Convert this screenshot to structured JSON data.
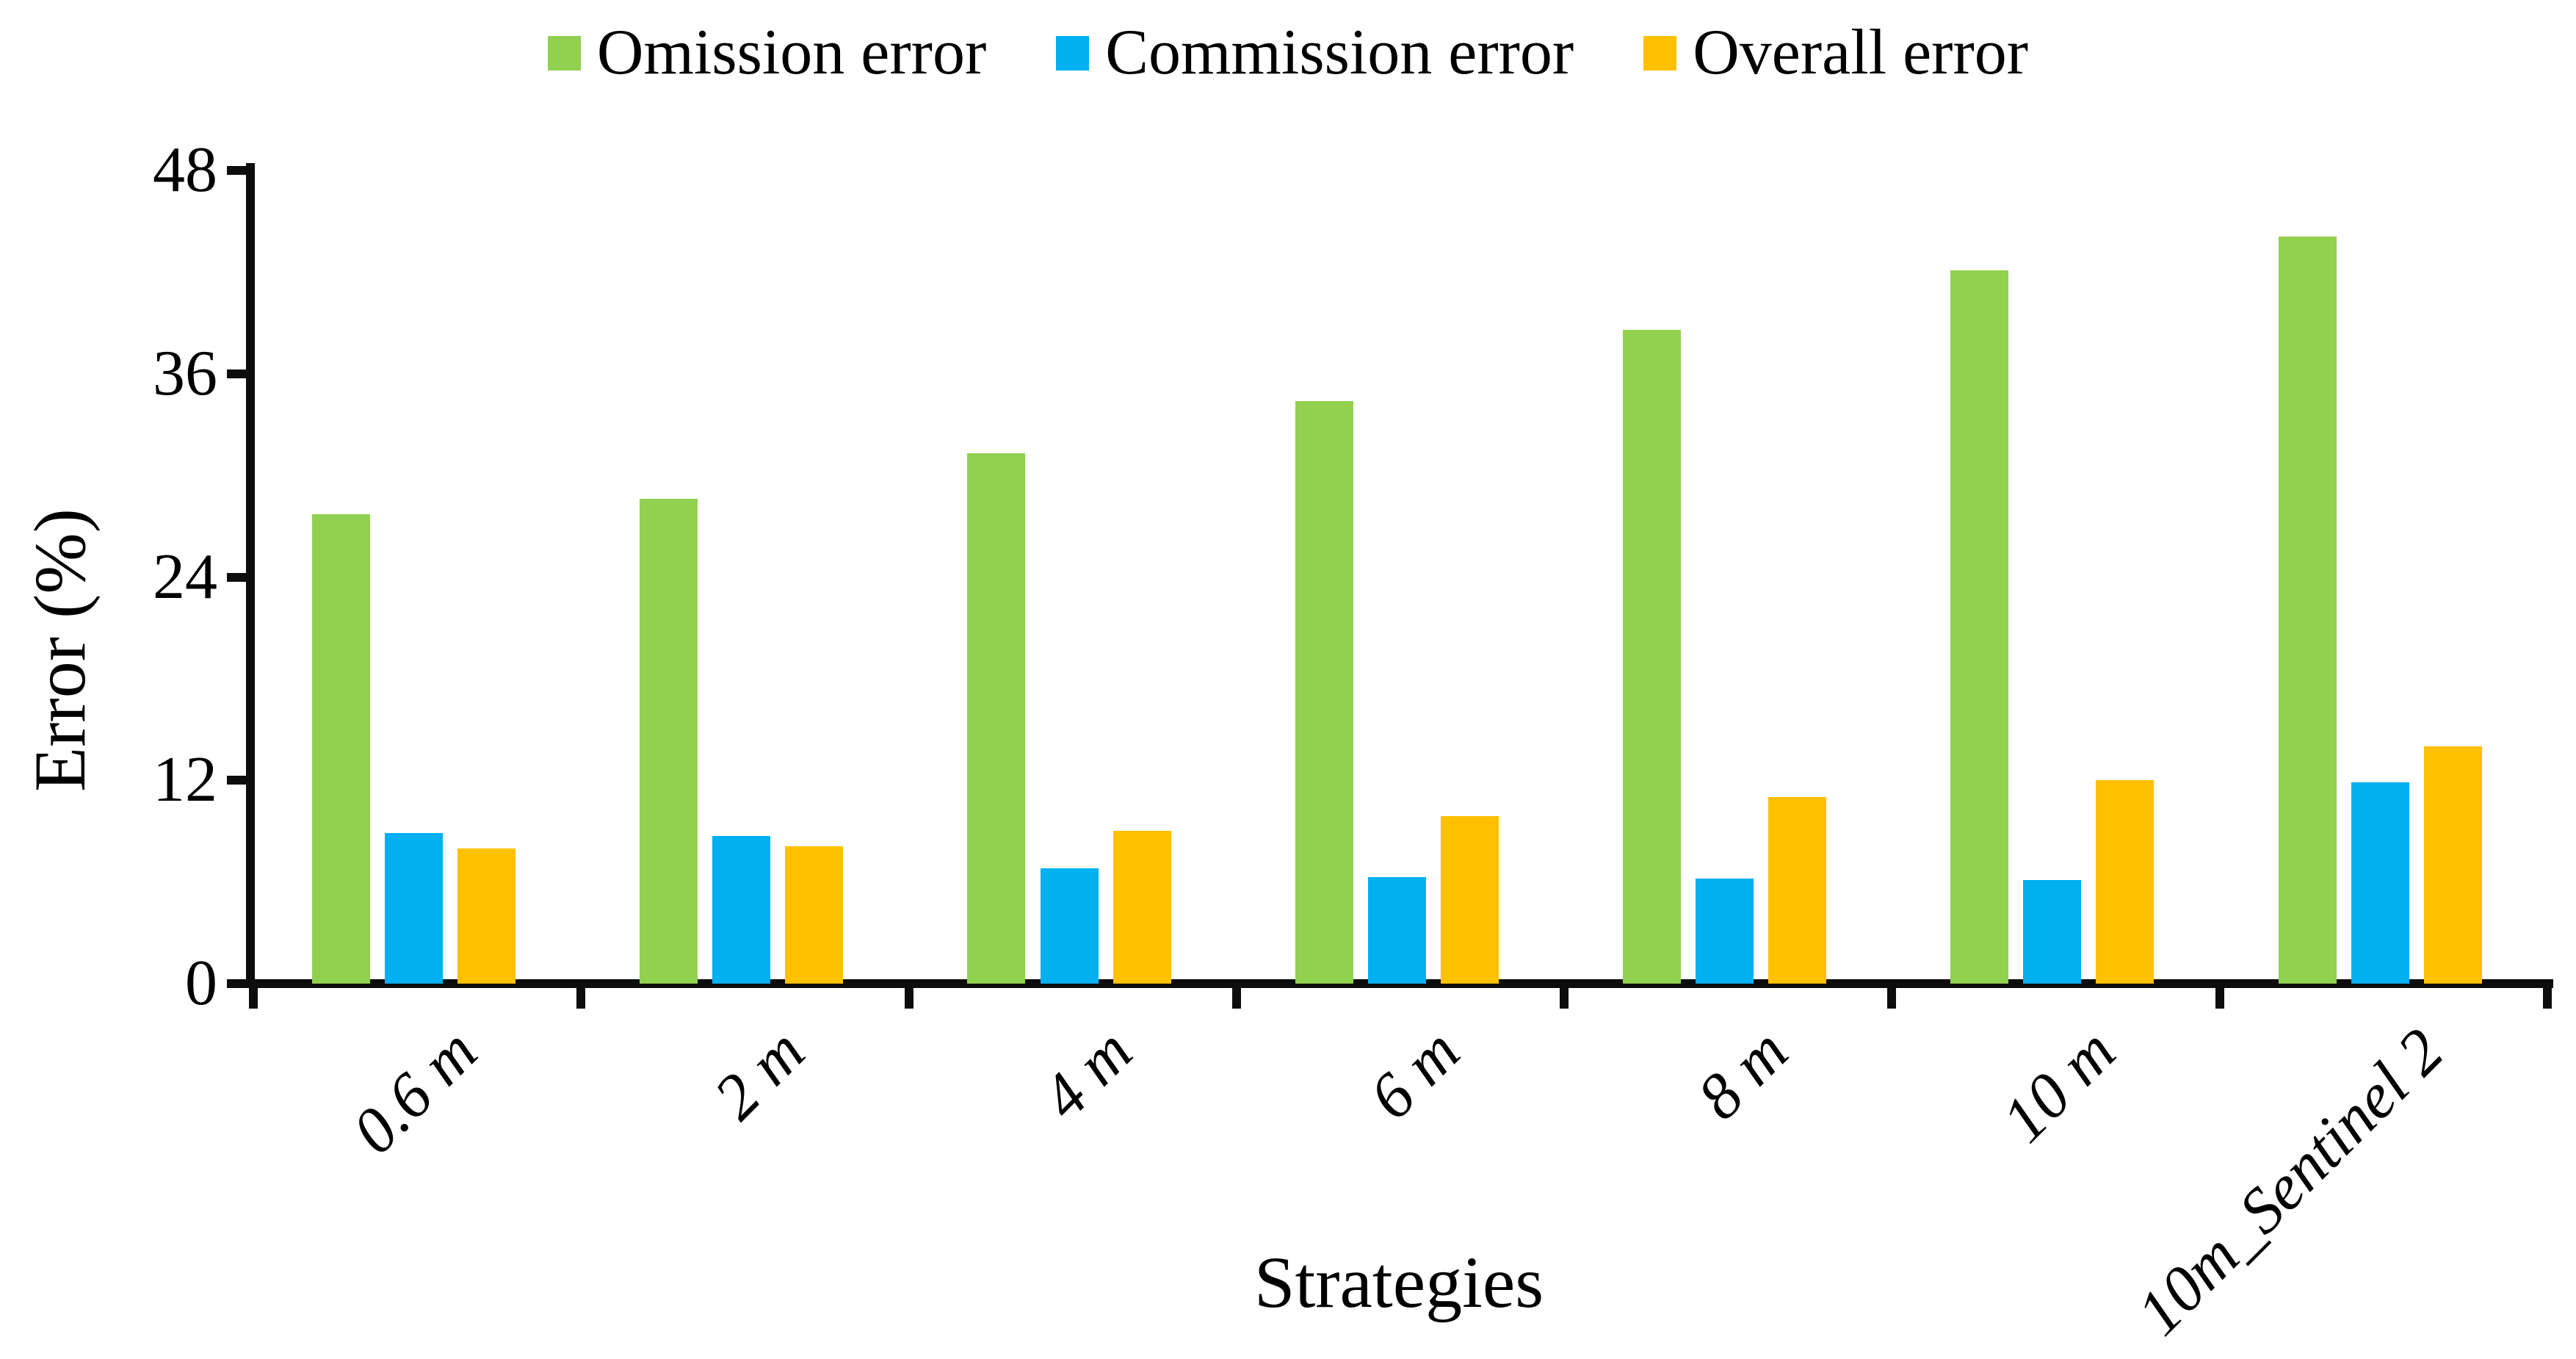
{
  "chart_data": {
    "type": "bar",
    "title": "",
    "xlabel": "Strategies",
    "ylabel": "Error (%)",
    "ylim": [
      0,
      48
    ],
    "yticks": [
      0,
      12,
      24,
      36,
      48
    ],
    "grid": "off",
    "legend_position": "top-center",
    "categories": [
      "0.6 m",
      "2 m",
      "4 m",
      "6 m",
      "8 m",
      "10 m",
      "10m_Sentinel 2"
    ],
    "series": [
      {
        "name": "Omission error",
        "color": "#92D050",
        "values": [
          27.7,
          28.6,
          31.3,
          34.4,
          38.6,
          42.1,
          44.1
        ]
      },
      {
        "name": "Commission error",
        "color": "#00B0F0",
        "values": [
          8.9,
          8.7,
          6.8,
          6.3,
          6.2,
          6.1,
          11.9
        ]
      },
      {
        "name": "Overall error",
        "color": "#FFC000",
        "values": [
          8.0,
          8.1,
          9.0,
          9.9,
          11.0,
          12.0,
          14.0
        ]
      }
    ],
    "axis_color": "#0d0d0d",
    "text_color": "#000000"
  }
}
